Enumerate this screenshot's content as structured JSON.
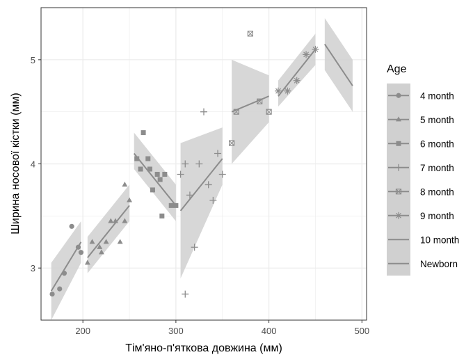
{
  "chart_data": {
    "type": "scatter",
    "title": "",
    "xlabel": "Тім'яно-п'яткова довжина (мм)",
    "ylabel": "Ширина носової кістки (мм)",
    "xlim": [
      155,
      505
    ],
    "ylim": [
      2.5,
      5.5
    ],
    "xticks": [
      200,
      300,
      400,
      500
    ],
    "yticks": [
      3,
      4,
      5
    ],
    "xtick_labels": [
      "200",
      "300",
      "400",
      "500"
    ],
    "ytick_labels": [
      "3",
      "4",
      "5"
    ],
    "grid": true,
    "legend_position": "right",
    "legend_title": "Age",
    "colors": {
      "panel_background": "#ffffff",
      "grid": "#ebebeb",
      "panel_border": "#333333",
      "points": "#8c8c8c",
      "ribbon": "#d0d0d0",
      "line": "#8c8c8c"
    },
    "series": [
      {
        "name": "4 month",
        "shape": "circle",
        "points": [
          [
            167,
            2.75
          ],
          [
            175,
            2.8
          ],
          [
            180,
            2.95
          ],
          [
            188,
            3.4
          ],
          [
            195,
            3.2
          ],
          [
            198,
            3.15
          ]
        ],
        "fit": {
          "x": [
            166,
            198
          ],
          "y": [
            2.78,
            3.25
          ],
          "se_lo": [
            2.5,
            3.05
          ],
          "se_hi": [
            3.05,
            3.45
          ]
        }
      },
      {
        "name": "5 month",
        "shape": "triangle",
        "points": [
          [
            205,
            3.05
          ],
          [
            210,
            3.25
          ],
          [
            218,
            3.2
          ],
          [
            220,
            3.15
          ],
          [
            225,
            3.25
          ],
          [
            230,
            3.45
          ],
          [
            235,
            3.45
          ],
          [
            240,
            3.25
          ],
          [
            245,
            3.8
          ],
          [
            245,
            3.45
          ],
          [
            250,
            3.65
          ]
        ],
        "fit": {
          "x": [
            205,
            250
          ],
          "y": [
            3.1,
            3.6
          ],
          "se_lo": [
            2.95,
            3.45
          ],
          "se_hi": [
            3.3,
            3.8
          ]
        }
      },
      {
        "name": "6 month",
        "shape": "square",
        "points": [
          [
            265,
            4.3
          ],
          [
            258,
            4.05
          ],
          [
            262,
            3.95
          ],
          [
            270,
            4.05
          ],
          [
            272,
            3.95
          ],
          [
            275,
            3.75
          ],
          [
            280,
            3.9
          ],
          [
            283,
            3.85
          ],
          [
            288,
            3.9
          ],
          [
            285,
            3.5
          ],
          [
            295,
            3.6
          ],
          [
            300,
            3.6
          ]
        ],
        "fit": {
          "x": [
            255,
            300
          ],
          "y": [
            4.1,
            3.6
          ],
          "se_lo": [
            3.95,
            3.45
          ],
          "se_hi": [
            4.3,
            3.8
          ]
        }
      },
      {
        "name": "7 month",
        "shape": "plus",
        "points": [
          [
            305,
            3.9
          ],
          [
            310,
            2.75
          ],
          [
            310,
            4.0
          ],
          [
            315,
            3.7
          ],
          [
            320,
            3.2
          ],
          [
            325,
            4.0
          ],
          [
            330,
            4.5
          ],
          [
            335,
            3.8
          ],
          [
            340,
            3.65
          ],
          [
            345,
            4.1
          ],
          [
            350,
            3.9
          ]
        ],
        "fit": {
          "x": [
            305,
            350
          ],
          "y": [
            3.55,
            4.05
          ],
          "se_lo": [
            2.9,
            3.8
          ],
          "se_hi": [
            4.2,
            4.35
          ]
        }
      },
      {
        "name": "8 month",
        "shape": "square-cross",
        "points": [
          [
            360,
            4.2
          ],
          [
            365,
            4.5
          ],
          [
            380,
            5.25
          ],
          [
            390,
            4.6
          ],
          [
            400,
            4.5
          ]
        ],
        "fit": {
          "x": [
            360,
            400
          ],
          "y": [
            4.5,
            4.65
          ],
          "se_lo": [
            4.0,
            4.4
          ],
          "se_hi": [
            5.0,
            4.85
          ]
        }
      },
      {
        "name": "9 month",
        "shape": "asterisk",
        "points": [
          [
            410,
            4.7
          ],
          [
            420,
            4.7
          ],
          [
            430,
            4.8
          ],
          [
            440,
            5.05
          ],
          [
            450,
            5.1
          ]
        ],
        "fit": {
          "x": [
            410,
            450
          ],
          "y": [
            4.65,
            5.1
          ],
          "se_lo": [
            4.55,
            4.95
          ],
          "se_hi": [
            4.8,
            5.25
          ]
        }
      },
      {
        "name": "10 month",
        "shape": "none",
        "points": [],
        "fit": {
          "x": [
            460,
            490
          ],
          "y": [
            5.15,
            4.75
          ],
          "se_lo": [
            4.9,
            4.5
          ],
          "se_hi": [
            5.4,
            5.0
          ]
        }
      },
      {
        "name": "Newborn",
        "shape": "none",
        "points": [],
        "fit": null
      }
    ]
  }
}
